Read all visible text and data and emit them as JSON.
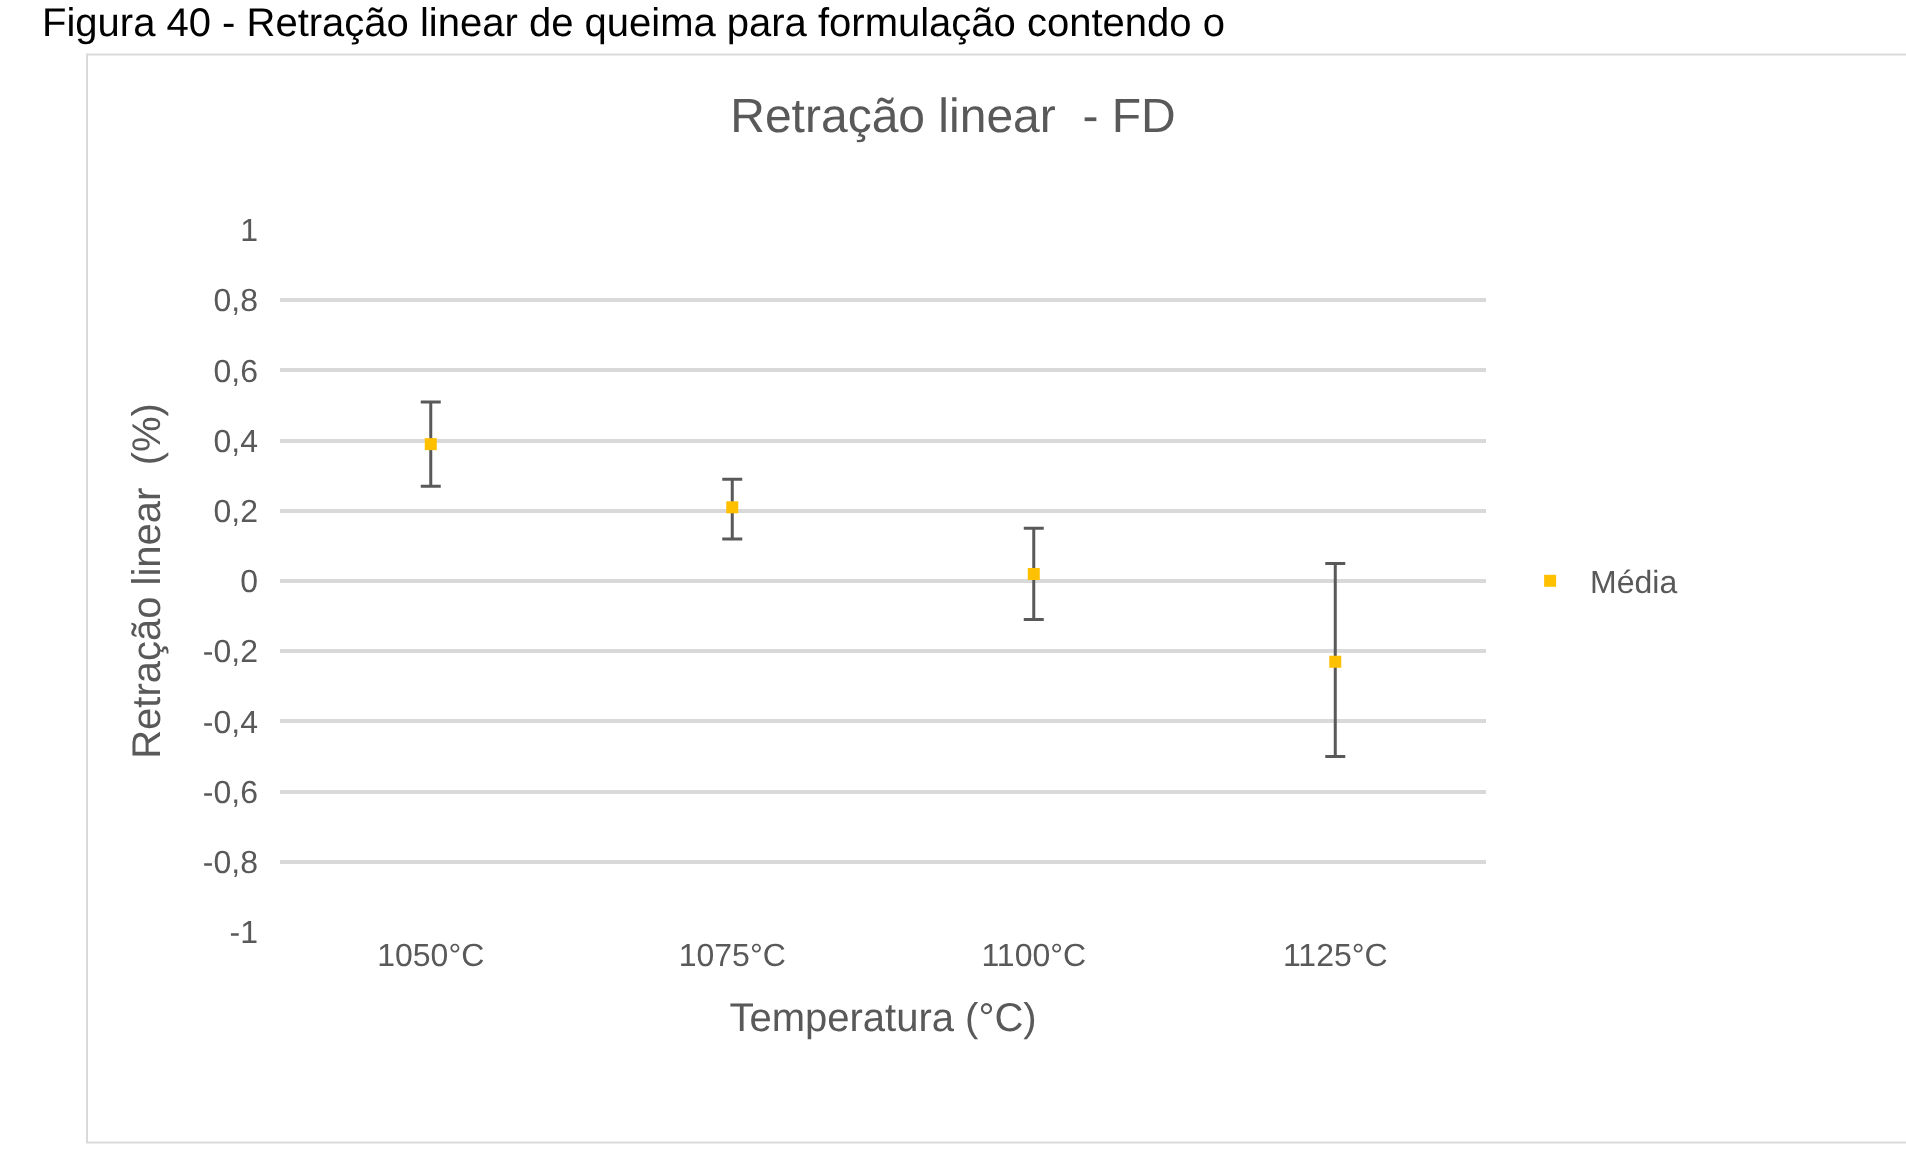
{
  "chart_data": {
    "type": "scatter",
    "title": "Retração linear  - FD",
    "xlabel": "Temperatura (°C)",
    "ylabel": "Retração linear  (%)",
    "annotations": [
      "Figura 40 - Retração linear de queima para formulação contendo o"
    ],
    "categories": [
      "1050°C",
      "1075°C",
      "1100°C",
      "1125°C"
    ],
    "series": [
      {
        "name": "Média",
        "color": "#ffc000",
        "values": [
          0.39,
          0.21,
          0.02,
          -0.23
        ],
        "errors": [
          [
            0.27,
            0.51
          ],
          [
            0.12,
            0.29
          ],
          [
            -0.11,
            0.15
          ],
          [
            -0.5,
            0.05
          ]
        ]
      }
    ],
    "ylim": [
      -1,
      1
    ],
    "yticks": [
      {
        "value": -1,
        "label": "-1"
      },
      {
        "value": -0.8,
        "label": "-0,8"
      },
      {
        "value": -0.6,
        "label": "-0,6"
      },
      {
        "value": -0.4,
        "label": "-0,4"
      },
      {
        "value": -0.2,
        "label": "-0,2"
      },
      0,
      {
        "value": 0.2,
        "label": "0,2"
      },
      {
        "value": 0.4,
        "label": "0,4"
      },
      {
        "value": 0.6,
        "label": "0,6"
      },
      {
        "value": 0.8,
        "label": "0,8"
      },
      1
    ],
    "grid": "y",
    "legend": "right",
    "marker": "square"
  }
}
